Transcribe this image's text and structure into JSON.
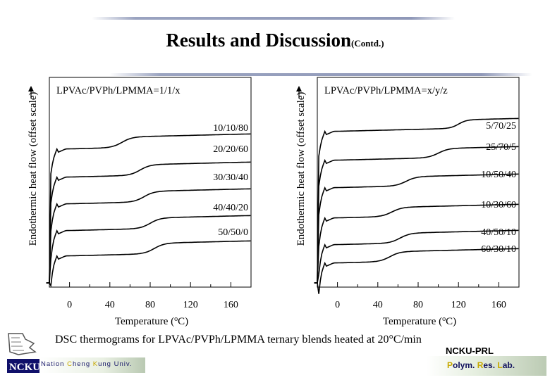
{
  "slide": {
    "title": "Results and Discussion",
    "title_suffix": "(Contd.)",
    "caption": "DSC thermograms for LPVAc/PVPh/LPMMA ternary blends heated at 20°C/min",
    "university": [
      "Nation ",
      "C",
      "heng ",
      "K",
      "ung ",
      "Univ."
    ],
    "logo_text": "NCKU",
    "lab_name": "NCKU-PRL",
    "lab_full": [
      "P",
      "olym. ",
      "R",
      "es. ",
      "L",
      "ab."
    ]
  },
  "chart_data": [
    {
      "type": "line",
      "title": "LPVAc/PVPh/LPMMA=1/1/x",
      "xlabel": "Temperature (oC)",
      "ylabel": "Endothermic heat flow (offset scale)",
      "xlim": [
        -20,
        180
      ],
      "ticks": [
        0,
        40,
        80,
        120,
        160
      ],
      "series": [
        {
          "name": "10/10/80",
          "tg": [
            42,
            62
          ]
        },
        {
          "name": "20/20/60",
          "tg": [
            60,
            80
          ]
        },
        {
          "name": "30/30/40",
          "tg": [
            64,
            84
          ]
        },
        {
          "name": "40/40/20",
          "tg": [
            70,
            90
          ]
        },
        {
          "name": "50/50/0",
          "tg": [
            74,
            94
          ]
        }
      ]
    },
    {
      "type": "line",
      "title": "LPVAc/PVPh/LPMMA=x/y/z",
      "xlabel": "Temperature (oC)",
      "ylabel": "Endothermic heat flow (offset scale)",
      "xlim": [
        -20,
        180
      ],
      "ticks": [
        0,
        40,
        80,
        120,
        160
      ],
      "series": [
        {
          "name": "5/70/25",
          "tg": [
            112,
            128
          ]
        },
        {
          "name": "25/70/5",
          "tg": [
            90,
            110
          ]
        },
        {
          "name": "10/50/40",
          "tg": [
            58,
            78
          ]
        },
        {
          "name": "10/30/60",
          "tg": [
            44,
            64
          ]
        },
        {
          "name": "40/50/10",
          "tg": [
            52,
            72
          ]
        },
        {
          "name": "60/30/10",
          "tg": [
            42,
            62
          ]
        }
      ]
    }
  ]
}
